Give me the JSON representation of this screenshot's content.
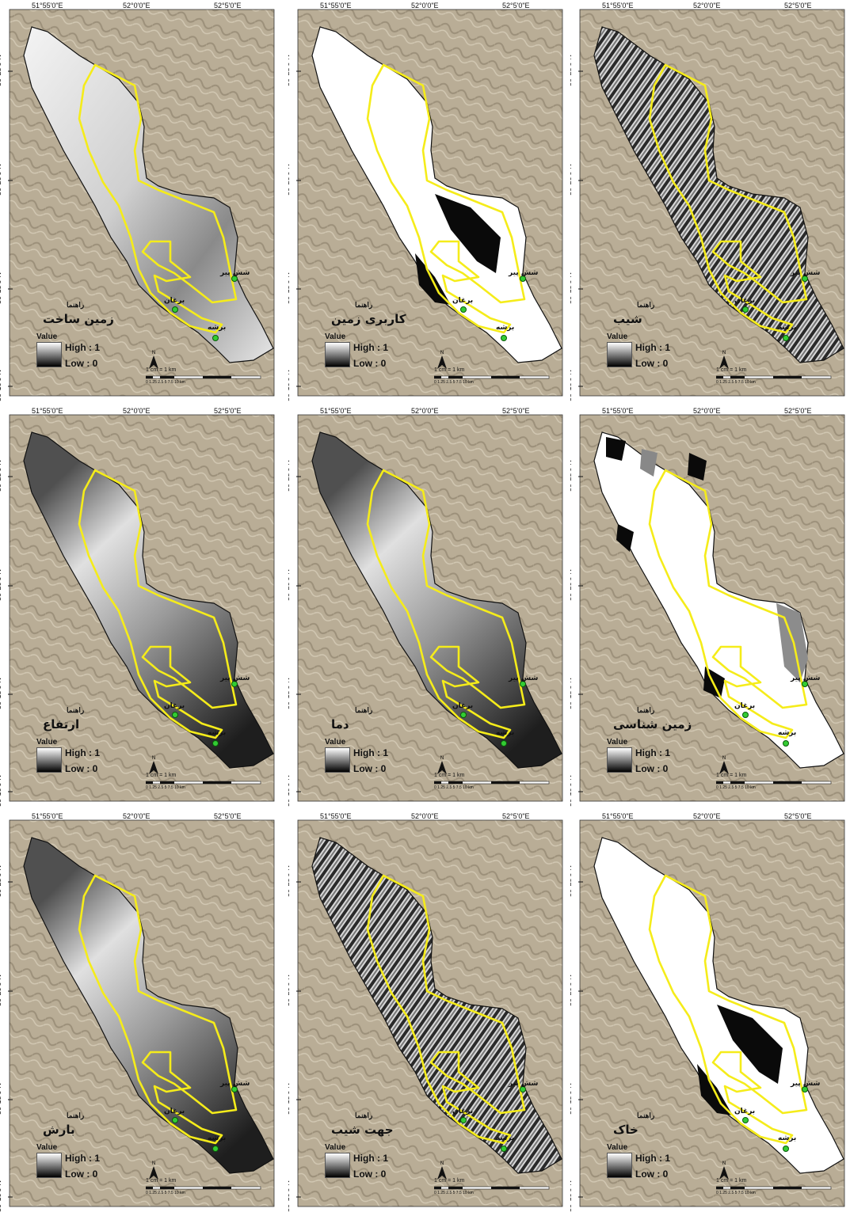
{
  "coords": {
    "lon": [
      "51°55'0\"E",
      "52°0'0\"E",
      "52°5'0\"E"
    ],
    "lat": [
      "30°25'0\"N",
      "30°20'0\"N",
      "30°15'0\"N",
      "30°10'0\"N"
    ]
  },
  "legend": {
    "heading": "راهنما",
    "value_label": "Value",
    "high": "High : 1",
    "low": "Low : 0"
  },
  "north_label": "N",
  "scale": {
    "label": "1 cm = 1 km",
    "ticks": "0  1.25  2.5      5       7.5      10",
    "unit": "km"
  },
  "places": [
    "شش پیر",
    "برغان",
    "برشه"
  ],
  "panels": [
    {
      "layer": "زمین ساخت",
      "style": "gradient-light"
    },
    {
      "layer": "کاربری زمین",
      "style": "white-black"
    },
    {
      "layer": "شیب",
      "style": "texture"
    },
    {
      "layer": "ارتفاع",
      "style": "gradient-dark"
    },
    {
      "layer": "دما",
      "style": "gradient-dark"
    },
    {
      "layer": "زمین شناسی",
      "style": "white-patches"
    },
    {
      "layer": "بارش",
      "style": "gradient-dark"
    },
    {
      "layer": "جهت شیب",
      "style": "texture"
    },
    {
      "layer": "خاک",
      "style": "white-black"
    }
  ],
  "colors": {
    "terrain": "#b9ad96",
    "study_area_outline": "#f5ec1a",
    "point": "#33cc33"
  }
}
